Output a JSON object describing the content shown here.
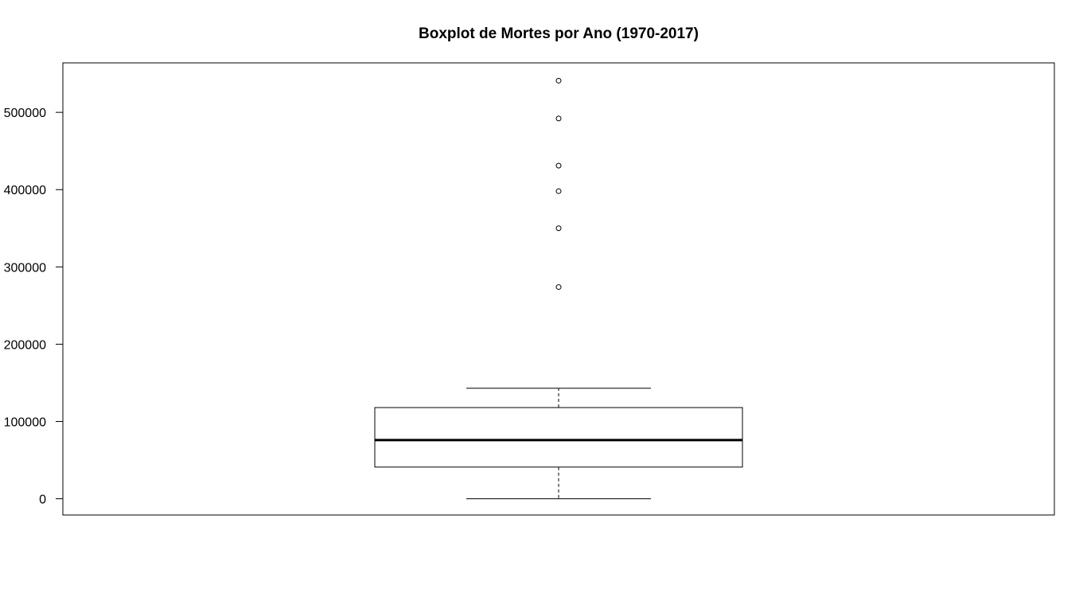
{
  "chart_data": {
    "type": "boxplot",
    "title": "Boxplot de Mortes por Ano (1970-2017)",
    "xlabel": "",
    "ylabel": "",
    "ylim": [
      -21000,
      564000
    ],
    "y_ticks": [
      0,
      100000,
      200000,
      300000,
      400000,
      500000
    ],
    "y_tick_labels": [
      "0",
      "100000",
      "200000",
      "300000",
      "400000",
      "500000"
    ],
    "box": {
      "whisker_low": 0,
      "q1": 41000,
      "median": 76000,
      "q3": 118000,
      "whisker_high": 143000
    },
    "outliers": [
      274000,
      350000,
      398000,
      431000,
      492000,
      541000
    ],
    "grid": false,
    "legend": "none"
  },
  "colors": {
    "line": "#000000",
    "background": "#ffffff"
  }
}
